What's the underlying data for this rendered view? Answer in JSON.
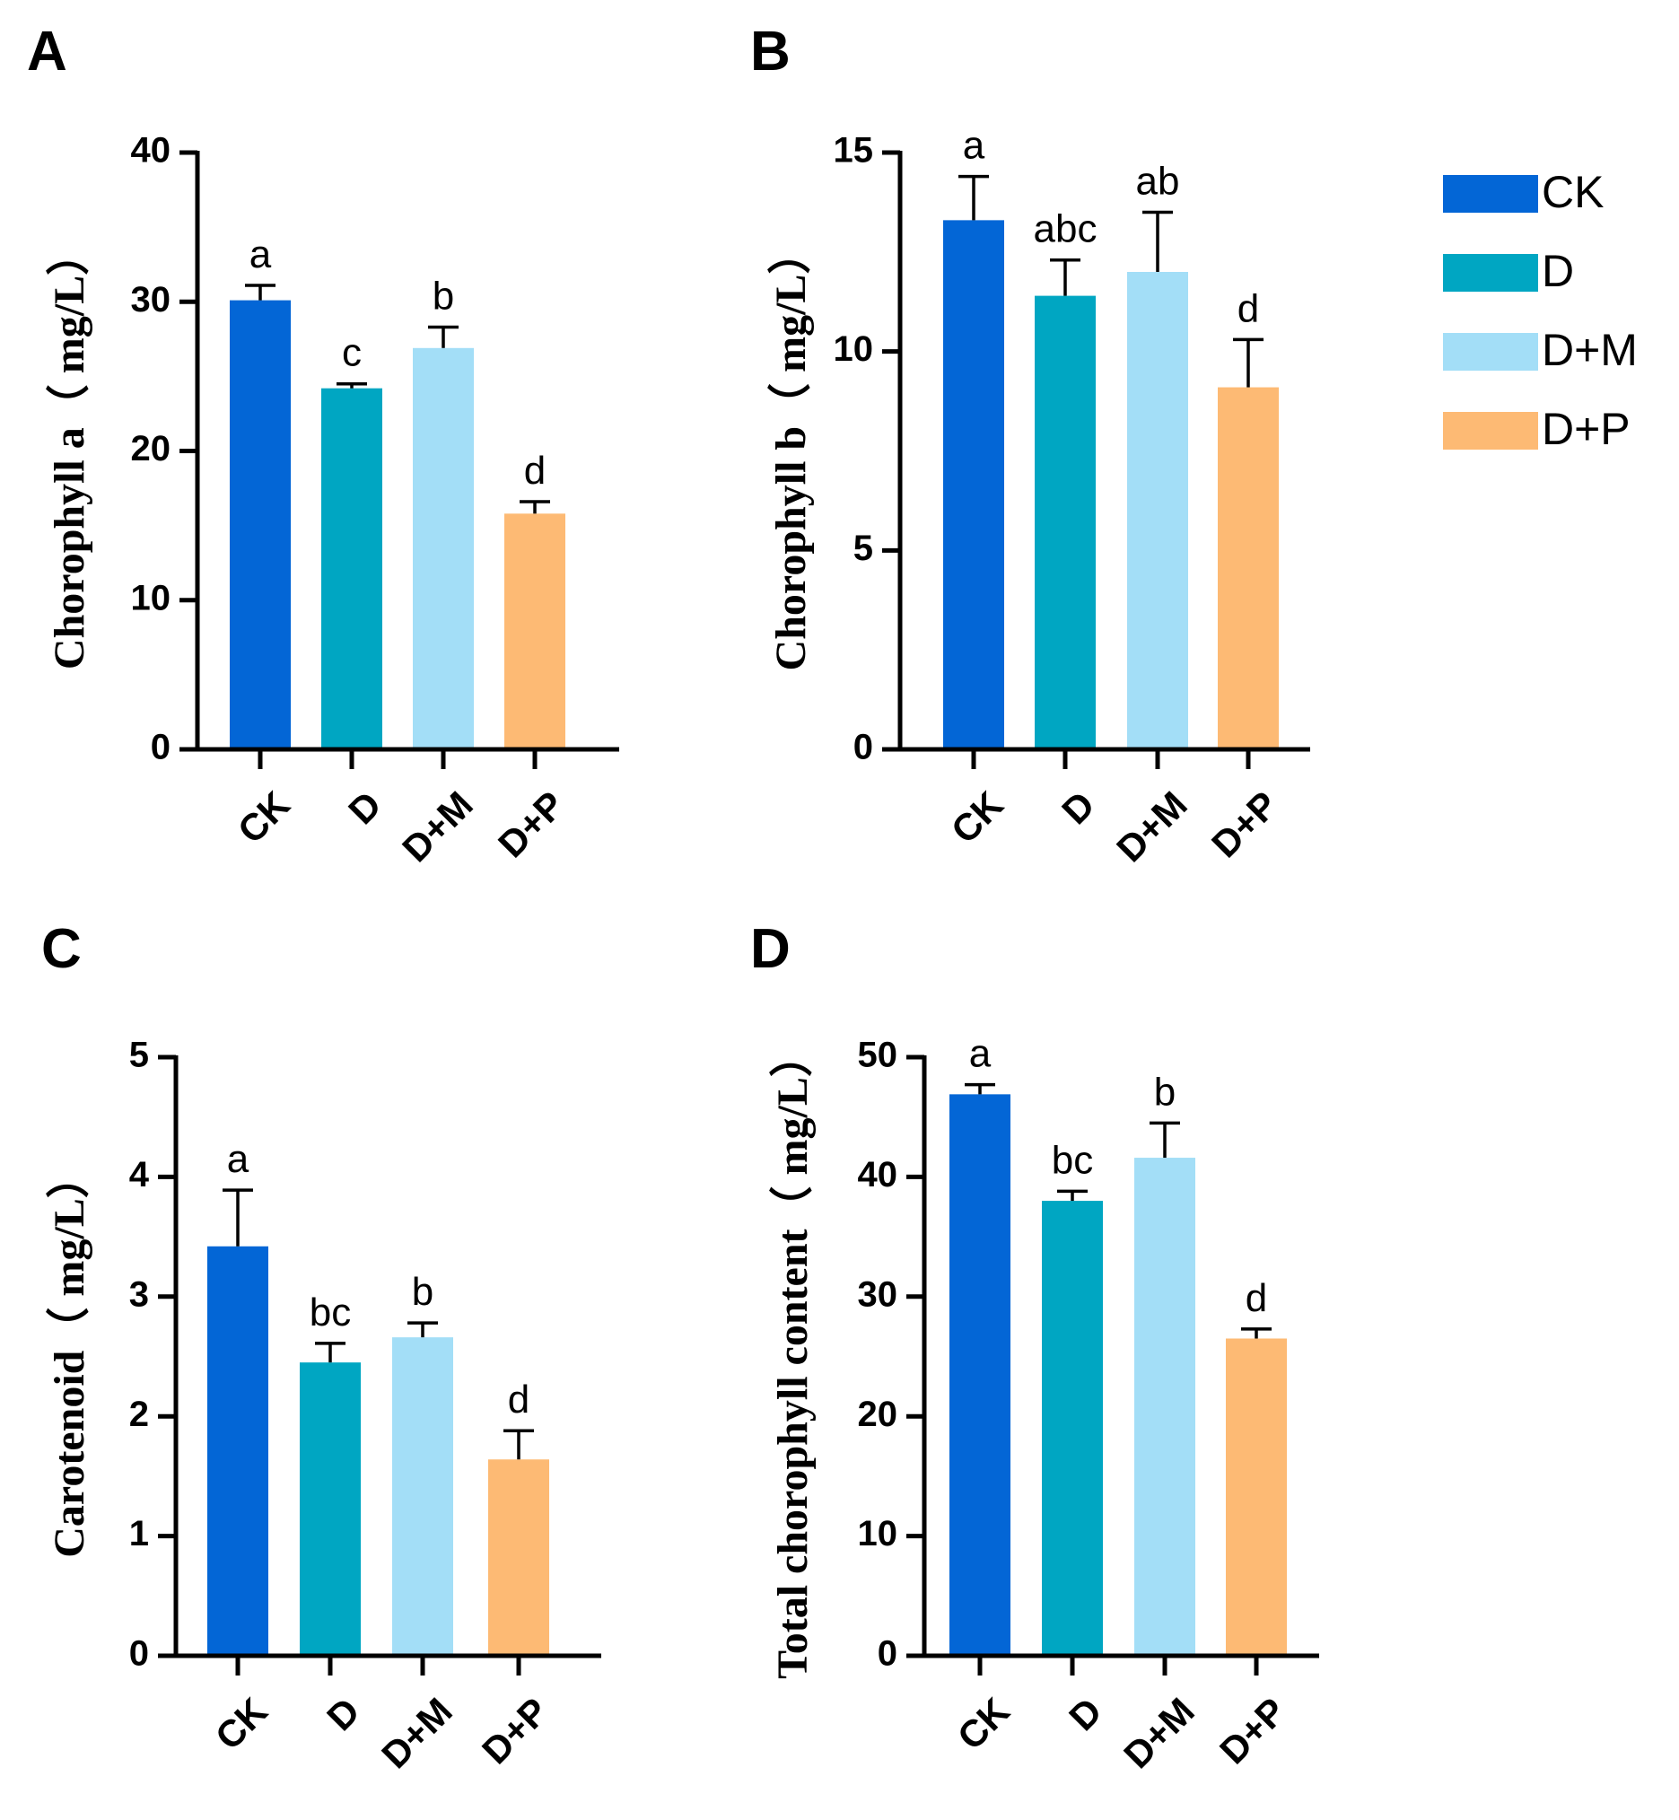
{
  "legend": {
    "items": [
      {
        "label": "CK",
        "color": "#0366d6"
      },
      {
        "label": "D",
        "color": "#00a6c2"
      },
      {
        "label": "D+M",
        "color": "#a3def7"
      },
      {
        "label": "D+P",
        "color": "#fdba74"
      }
    ]
  },
  "chart_data": [
    {
      "panel": "A",
      "type": "bar",
      "categories": [
        "CK",
        "D",
        "D+M",
        "D+P"
      ],
      "values": [
        30.1,
        24.2,
        26.9,
        15.8
      ],
      "errors": [
        1.0,
        0.3,
        1.4,
        0.8
      ],
      "significance": [
        "a",
        "c",
        "b",
        "d"
      ],
      "ylabel": "Chorophyll a（ mg/L）",
      "ylim": [
        0,
        40
      ],
      "yticks": [
        0,
        10,
        20,
        30,
        40
      ]
    },
    {
      "panel": "B",
      "type": "bar",
      "categories": [
        "CK",
        "D",
        "D+M",
        "D+P"
      ],
      "values": [
        13.3,
        11.4,
        12.0,
        9.1
      ],
      "errors": [
        1.1,
        0.9,
        1.5,
        1.2
      ],
      "significance": [
        "a",
        "abc",
        "ab",
        "d"
      ],
      "ylabel": "Chorophyll b（ mg/L）",
      "ylim": [
        0,
        15
      ],
      "yticks": [
        0,
        5,
        10,
        15
      ]
    },
    {
      "panel": "C",
      "type": "bar",
      "categories": [
        "CK",
        "D",
        "D+M",
        "D+P"
      ],
      "values": [
        3.42,
        2.45,
        2.66,
        1.64
      ],
      "errors": [
        0.47,
        0.16,
        0.12,
        0.24
      ],
      "significance": [
        "a",
        "bc",
        "b",
        "d"
      ],
      "ylabel": "Carotenoid（ mg/L）",
      "ylim": [
        0,
        5
      ],
      "yticks": [
        0,
        1,
        2,
        3,
        4,
        5
      ]
    },
    {
      "panel": "D",
      "type": "bar",
      "categories": [
        "CK",
        "D",
        "D+M",
        "D+P"
      ],
      "values": [
        46.9,
        38.0,
        41.6,
        26.5
      ],
      "errors": [
        0.8,
        0.8,
        2.9,
        0.8
      ],
      "significance": [
        "a",
        "bc",
        "b",
        "d"
      ],
      "ylabel": "Total chorophyll content（ mg/L）",
      "ylim": [
        0,
        50
      ],
      "yticks": [
        0,
        10,
        20,
        30,
        40,
        50
      ]
    }
  ]
}
